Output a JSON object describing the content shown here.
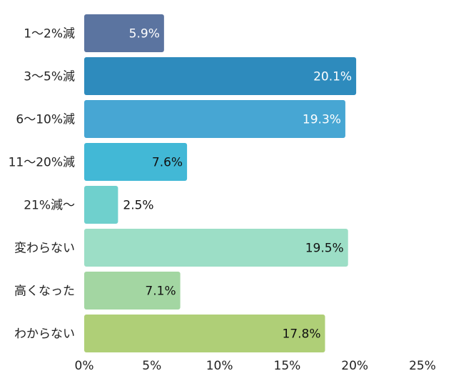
{
  "chart_data": {
    "type": "bar",
    "orientation": "horizontal",
    "categories": [
      "1〜2%減",
      "3〜5%減",
      "6〜10%減",
      "11〜20%減",
      "21%減〜",
      "変わらない",
      "高くなった",
      "わからない"
    ],
    "values": [
      5.9,
      20.1,
      19.3,
      7.6,
      2.5,
      19.5,
      7.1,
      17.8
    ],
    "data_labels": [
      "5.9%",
      "20.1%",
      "19.3%",
      "7.6%",
      "2.5%",
      "19.5%",
      "7.1%",
      "17.8%"
    ],
    "xlim": [
      0,
      25
    ],
    "x_ticks": [
      0,
      5,
      10,
      15,
      20,
      25
    ],
    "x_tick_labels": [
      "0%",
      "5%",
      "10%",
      "15%",
      "20%",
      "25%"
    ],
    "colors": [
      "#5b74a0",
      "#2e8bbd",
      "#47a6d3",
      "#42b8d6",
      "#6fd0cd",
      "#9cdec6",
      "#a3d6a2",
      "#afcf77"
    ],
    "label_colors": [
      "#ffffff",
      "#ffffff",
      "#ffffff",
      "#111111",
      "#111111",
      "#111111",
      "#111111",
      "#111111"
    ],
    "grid": false,
    "legend": "none"
  }
}
